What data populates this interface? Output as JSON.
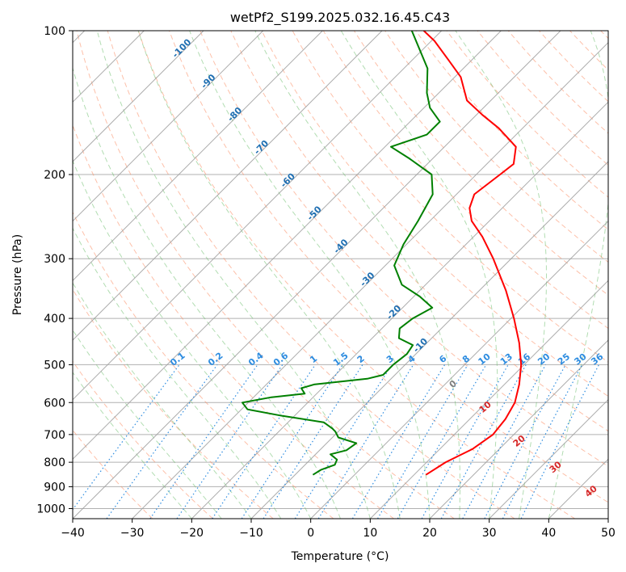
{
  "chart_data": {
    "type": "line",
    "title": "wetPf2_S199.2025.032.16.45.C43",
    "xlabel": "Temperature (°C)",
    "ylabel": "Pressure (hPa)",
    "xlim": [
      -40,
      50
    ],
    "ylim": [
      1050,
      100
    ],
    "y_scale": "log",
    "x_ticks": [
      -40,
      -30,
      -20,
      -10,
      0,
      10,
      20,
      30,
      40,
      50
    ],
    "y_ticks": [
      100,
      200,
      300,
      400,
      500,
      600,
      700,
      800,
      900,
      1000
    ],
    "grid": true,
    "colors": {
      "temperature": "#ff0000",
      "dewpoint": "#008000",
      "isotherm": "#9e9e9e",
      "dry_adiabat": "#fc8d62",
      "moist_adiabat": "#66bb66",
      "mixing_ratio": "#2d8ce0",
      "grid": "#b0b0b0"
    },
    "series": [
      {
        "key": "temperature",
        "points": [
          {
            "p": 850,
            "t": 12
          },
          {
            "p": 800,
            "t": 13.2
          },
          {
            "p": 750,
            "t": 15.5
          },
          {
            "p": 700,
            "t": 16.5
          },
          {
            "p": 650,
            "t": 16.0
          },
          {
            "p": 600,
            "t": 14.8
          },
          {
            "p": 550,
            "t": 12.5
          },
          {
            "p": 500,
            "t": 9.5
          },
          {
            "p": 450,
            "t": 5.5
          },
          {
            "p": 400,
            "t": 0.5
          },
          {
            "p": 350,
            "t": -5.5
          },
          {
            "p": 300,
            "t": -13.0
          },
          {
            "p": 270,
            "t": -18.5
          },
          {
            "p": 250,
            "t": -23.0
          },
          {
            "p": 235,
            "t": -25.5
          },
          {
            "p": 220,
            "t": -27.0
          },
          {
            "p": 200,
            "t": -26.0
          },
          {
            "p": 190,
            "t": -25.5
          },
          {
            "p": 175,
            "t": -28.0
          },
          {
            "p": 160,
            "t": -34.0
          },
          {
            "p": 150,
            "t": -39.0
          },
          {
            "p": 140,
            "t": -44.0
          },
          {
            "p": 125,
            "t": -49.0
          },
          {
            "p": 115,
            "t": -54.0
          },
          {
            "p": 105,
            "t": -59.5
          },
          {
            "p": 100,
            "t": -63.0
          }
        ]
      },
      {
        "key": "dewpoint",
        "points": [
          {
            "p": 850,
            "t": -7
          },
          {
            "p": 830,
            "t": -6.5
          },
          {
            "p": 810,
            "t": -5.0
          },
          {
            "p": 790,
            "t": -5.5
          },
          {
            "p": 770,
            "t": -7.5
          },
          {
            "p": 755,
            "t": -5.5
          },
          {
            "p": 730,
            "t": -5.0
          },
          {
            "p": 710,
            "t": -9.0
          },
          {
            "p": 690,
            "t": -10.5
          },
          {
            "p": 680,
            "t": -11.5
          },
          {
            "p": 660,
            "t": -14.0
          },
          {
            "p": 640,
            "t": -22.0
          },
          {
            "p": 620,
            "t": -29.0
          },
          {
            "p": 600,
            "t": -31.0
          },
          {
            "p": 585,
            "t": -27.0
          },
          {
            "p": 575,
            "t": -22.0
          },
          {
            "p": 560,
            "t": -23.5
          },
          {
            "p": 550,
            "t": -22.0
          },
          {
            "p": 535,
            "t": -14.0
          },
          {
            "p": 525,
            "t": -12.0
          },
          {
            "p": 500,
            "t": -12.0
          },
          {
            "p": 475,
            "t": -11.5
          },
          {
            "p": 455,
            "t": -12.0
          },
          {
            "p": 440,
            "t": -15.5
          },
          {
            "p": 420,
            "t": -17.0
          },
          {
            "p": 400,
            "t": -16.5
          },
          {
            "p": 380,
            "t": -15.0
          },
          {
            "p": 360,
            "t": -19.0
          },
          {
            "p": 340,
            "t": -24.0
          },
          {
            "p": 310,
            "t": -28.5
          },
          {
            "p": 280,
            "t": -30.5
          },
          {
            "p": 250,
            "t": -32.0
          },
          {
            "p": 220,
            "t": -34.0
          },
          {
            "p": 200,
            "t": -37.5
          },
          {
            "p": 185,
            "t": -44.0
          },
          {
            "p": 175,
            "t": -49.0
          },
          {
            "p": 165,
            "t": -45.0
          },
          {
            "p": 155,
            "t": -45.0
          },
          {
            "p": 145,
            "t": -49.0
          },
          {
            "p": 135,
            "t": -52.0
          },
          {
            "p": 120,
            "t": -56.0
          },
          {
            "p": 100,
            "t": -65.0
          }
        ]
      }
    ],
    "isotherm_labels": [
      -100,
      -90,
      -80,
      -70,
      -60,
      -50,
      -40,
      -30,
      -20,
      -10
    ],
    "mixing_ratio_labels": [
      "0.1",
      "0.2",
      "0.4",
      "0.6",
      "1",
      "1.5",
      "2",
      "3",
      "4",
      "6",
      "8",
      "10",
      "13",
      "16",
      "20",
      "25",
      "30",
      "36"
    ],
    "mixing_ratio_values": [
      0.1,
      0.2,
      0.4,
      0.6,
      1,
      1.5,
      2,
      3,
      4,
      6,
      8,
      10,
      13,
      16,
      20,
      25,
      30,
      36
    ],
    "wetbulb_label": "0",
    "theta_labels": [
      "10",
      "20",
      "30",
      "40"
    ]
  }
}
